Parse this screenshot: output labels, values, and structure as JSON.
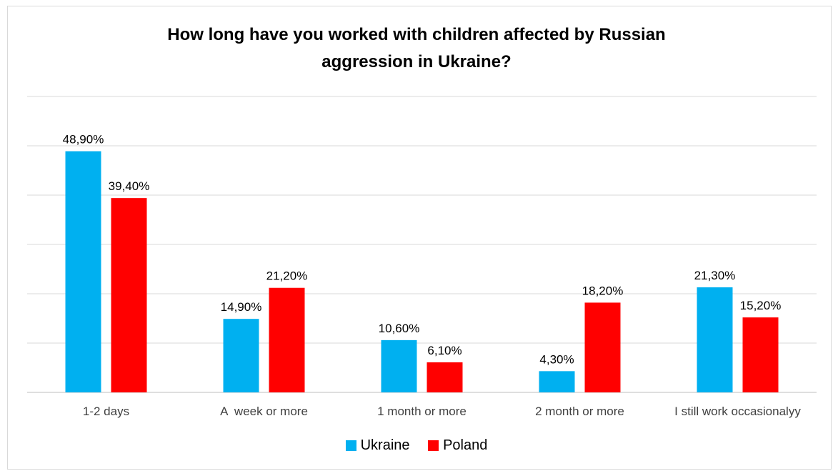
{
  "chart_data": {
    "type": "bar",
    "title_lines": [
      "How long have you worked with children affected by Russian",
      "aggression in Ukraine?"
    ],
    "categories": [
      "1-2 days",
      "A  week or more",
      "1 month or more",
      "2 month or more",
      "I still work occasionalyy"
    ],
    "series": [
      {
        "name": "Ukraine",
        "color": "#00b0f0",
        "values": [
          48.9,
          14.9,
          10.6,
          4.3,
          21.3
        ],
        "labels": [
          "48,90%",
          "14,90%",
          "10,60%",
          "4,30%",
          "21,30%"
        ]
      },
      {
        "name": "Poland",
        "color": "#ff0000",
        "values": [
          39.4,
          21.2,
          6.1,
          18.2,
          15.2
        ],
        "labels": [
          "39,40%",
          "21,20%",
          "6,10%",
          "18,20%",
          "15,20%"
        ]
      }
    ],
    "ylim": [
      0,
      60
    ],
    "grid": true,
    "legend_position": "bottom"
  }
}
